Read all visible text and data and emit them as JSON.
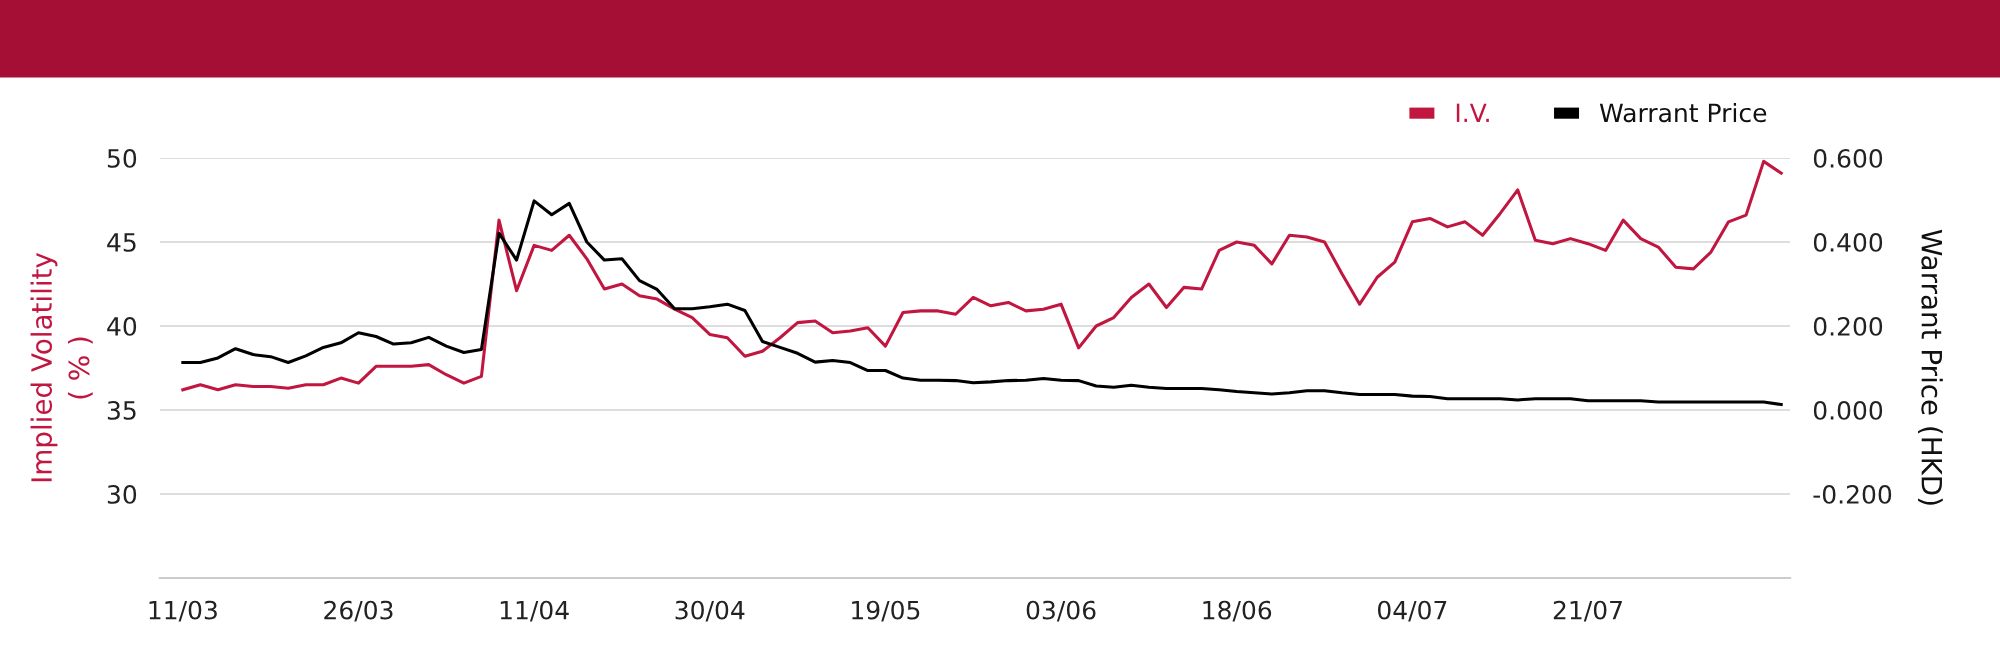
{
  "chart_data": {
    "type": "line",
    "categories": [
      "11/03",
      null,
      null,
      null,
      null,
      null,
      null,
      null,
      null,
      null,
      "26/03",
      null,
      null,
      null,
      null,
      null,
      null,
      null,
      null,
      null,
      "11/04",
      null,
      null,
      null,
      null,
      null,
      null,
      null,
      null,
      null,
      "30/04",
      null,
      null,
      null,
      null,
      null,
      null,
      null,
      null,
      null,
      "19/05",
      null,
      null,
      null,
      null,
      null,
      null,
      null,
      null,
      null,
      "03/06",
      null,
      null,
      null,
      null,
      null,
      null,
      null,
      null,
      null,
      "18/06",
      null,
      null,
      null,
      null,
      null,
      null,
      null,
      null,
      null,
      "04/07",
      null,
      null,
      null,
      null,
      null,
      null,
      null,
      null,
      null,
      "21/07",
      null,
      null,
      null,
      null,
      null,
      null,
      null,
      null,
      null,
      null,
      null
    ],
    "series": [
      {
        "name": "I.V.",
        "color": "#c0163f",
        "values": [
          36.2,
          36.5,
          36.2,
          36.5,
          36.4,
          36.4,
          36.3,
          36.5,
          36.5,
          36.9,
          36.6,
          37.6,
          37.6,
          37.6,
          37.7,
          37.1,
          36.6,
          37.0,
          46.3,
          42.1,
          44.8,
          44.5,
          45.4,
          44.0,
          42.2,
          42.5,
          41.8,
          41.6,
          41.0,
          40.5,
          39.5,
          39.3,
          38.2,
          38.5,
          39.3,
          40.2,
          40.3,
          39.6,
          39.7,
          39.9,
          38.8,
          40.8,
          40.9,
          40.9,
          40.7,
          41.7,
          41.2,
          41.4,
          40.9,
          41.0,
          41.3,
          38.7,
          40.0,
          40.5,
          41.7,
          42.5,
          41.1,
          42.3,
          42.2,
          44.5,
          45.0,
          44.8,
          43.7,
          45.4,
          45.3,
          45.0,
          43.1,
          41.3,
          42.9,
          43.8,
          46.2,
          46.4,
          45.9,
          46.2,
          45.4,
          46.7,
          48.1,
          45.1,
          44.9,
          45.2,
          44.9,
          44.5,
          46.3,
          45.2,
          44.7,
          43.5,
          43.4,
          44.4,
          46.2,
          46.6,
          49.8,
          49.1
        ]
      },
      {
        "name": "Warrant Price",
        "color": "#000000",
        "axis": "y2",
        "values": [
          0.113,
          0.113,
          0.124,
          0.146,
          0.132,
          0.127,
          0.113,
          0.129,
          0.149,
          0.16,
          0.184,
          0.175,
          0.157,
          0.16,
          0.173,
          0.152,
          0.137,
          0.144,
          0.421,
          0.357,
          0.498,
          0.465,
          0.492,
          0.4,
          0.357,
          0.36,
          0.308,
          0.287,
          0.241,
          0.241,
          0.246,
          0.252,
          0.237,
          0.163,
          0.149,
          0.135,
          0.114,
          0.118,
          0.113,
          0.094,
          0.094,
          0.076,
          0.071,
          0.071,
          0.07,
          0.065,
          0.067,
          0.07,
          0.071,
          0.075,
          0.071,
          0.07,
          0.057,
          0.054,
          0.059,
          0.054,
          0.051,
          0.051,
          0.051,
          0.048,
          0.044,
          0.041,
          0.038,
          0.041,
          0.046,
          0.046,
          0.041,
          0.037,
          0.037,
          0.037,
          0.033,
          0.032,
          0.027,
          0.027,
          0.027,
          0.027,
          0.024,
          0.027,
          0.027,
          0.027,
          0.022,
          0.022,
          0.022,
          0.022,
          0.019,
          0.019,
          0.019,
          0.019,
          0.019,
          0.019,
          0.019,
          0.013
        ]
      }
    ],
    "ylabel": "Implied Volatility\n( % )",
    "y2label": "Warrant Price (HKD)",
    "ylim": [
      25,
      50
    ],
    "yticks": [
      30,
      35,
      40,
      45,
      50
    ],
    "y2lim": [
      -0.4,
      0.6
    ],
    "y2ticks": [
      {
        "value": -0.2,
        "label": "-0.200"
      },
      {
        "value": 0.0,
        "label": "0.000"
      },
      {
        "value": 0.2,
        "label": "0.200"
      },
      {
        "value": 0.4,
        "label": "0.400"
      },
      {
        "value": 0.6,
        "label": "0.600"
      }
    ],
    "grid": "y",
    "legend": "top right",
    "marker": "none",
    "line_style": "solid"
  }
}
